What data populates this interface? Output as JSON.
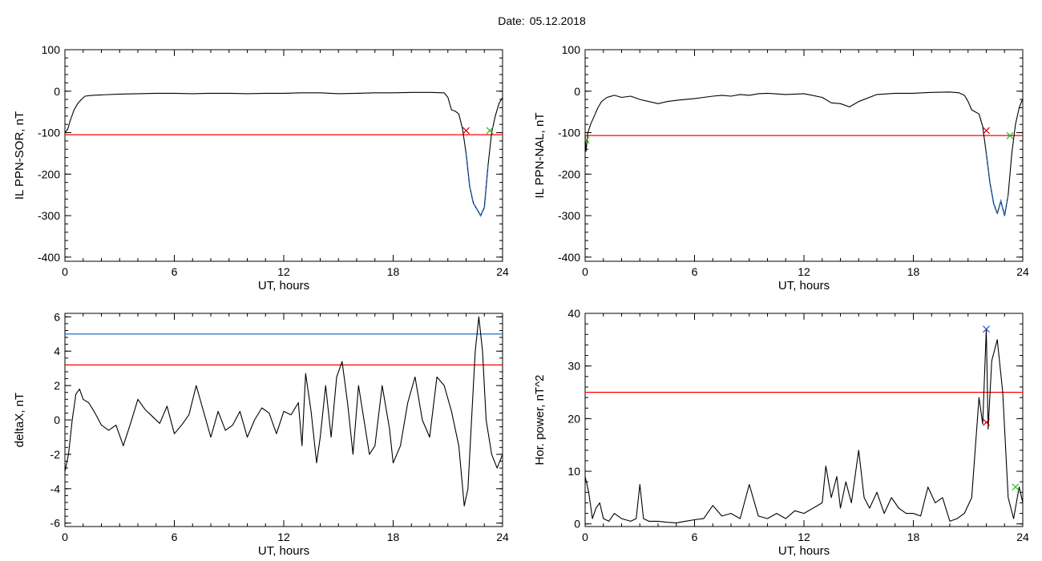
{
  "header": {
    "date_label": "Date:",
    "date_value": "05.12.2018"
  },
  "colors": {
    "threshold_red": "#ff0000",
    "threshold_blue": "#1f6fd6",
    "segment_blue": "#1f6fd6",
    "marker_red": "#cc0000",
    "marker_green": "#22bb22",
    "marker_blue": "#2255cc"
  },
  "chart_data": [
    {
      "type": "line",
      "title": "",
      "xlabel": "UT, hours",
      "ylabel": "IL PPN-SOR, nT",
      "xlim": [
        0,
        24
      ],
      "ylim": [
        -410,
        100
      ],
      "xticks": [
        0,
        6,
        12,
        18,
        24
      ],
      "yticks": [
        100,
        0,
        -100,
        -200,
        -300,
        -400
      ],
      "grid": false,
      "series": [
        {
          "x": [
            0,
            0.15,
            0.3,
            0.5,
            0.7,
            0.9,
            1.1,
            1.5,
            2,
            3,
            4,
            5,
            6,
            7,
            8,
            9,
            10,
            11,
            12,
            13,
            14,
            15,
            16,
            17,
            18,
            19,
            20,
            20.8,
            21.0,
            21.2,
            21.4,
            21.6,
            21.8,
            22.0,
            22.2,
            22.4,
            22.6,
            22.8,
            23.0,
            23.2,
            23.4,
            23.6,
            23.8,
            24
          ],
          "y": [
            -100,
            -92,
            -70,
            -45,
            -30,
            -20,
            -12,
            -10,
            -9,
            -7,
            -6,
            -5,
            -5,
            -6,
            -5,
            -5,
            -6,
            -5,
            -5,
            -4,
            -4,
            -6,
            -5,
            -4,
            -4,
            -3,
            -3,
            -4,
            -15,
            -45,
            -48,
            -55,
            -90,
            -150,
            -230,
            -270,
            -285,
            -300,
            -280,
            -180,
            -100,
            -60,
            -30,
            -15
          ]
        }
      ],
      "highlight_segment": {
        "x_start": 22.0,
        "x_end": 23.3
      },
      "threshold_lines": [
        {
          "y": -105,
          "color": "red"
        }
      ],
      "markers": [
        {
          "x": 22.0,
          "y": -95,
          "symbol": "x",
          "color": "red"
        },
        {
          "x": 23.3,
          "y": -95,
          "symbol": "x",
          "color": "green"
        }
      ]
    },
    {
      "type": "line",
      "title": "",
      "xlabel": "UT, hours",
      "ylabel": "IL PPN-NAL, nT",
      "xlim": [
        0,
        24
      ],
      "ylim": [
        -410,
        100
      ],
      "xticks": [
        0,
        6,
        12,
        18,
        24
      ],
      "yticks": [
        100,
        0,
        -100,
        -200,
        -300,
        -400
      ],
      "grid": false,
      "series": [
        {
          "x": [
            0,
            0.05,
            0.15,
            0.3,
            0.5,
            0.7,
            0.9,
            1.2,
            1.6,
            2,
            2.5,
            3,
            3.5,
            4,
            4.5,
            5,
            5.5,
            6,
            6.5,
            7,
            7.5,
            8,
            8.5,
            9,
            9.5,
            10,
            11,
            12,
            13,
            13.5,
            14,
            14.5,
            15,
            16,
            17,
            18,
            19,
            20,
            20.5,
            20.8,
            21.0,
            21.2,
            21.4,
            21.6,
            21.8,
            22.0,
            22.2,
            22.4,
            22.6,
            22.8,
            23.0,
            23.2,
            23.4,
            23.6,
            23.8,
            24
          ],
          "y": [
            -105,
            -145,
            -100,
            -80,
            -60,
            -40,
            -25,
            -15,
            -10,
            -15,
            -12,
            -20,
            -25,
            -30,
            -25,
            -22,
            -20,
            -18,
            -15,
            -12,
            -10,
            -12,
            -8,
            -10,
            -6,
            -5,
            -8,
            -6,
            -15,
            -28,
            -30,
            -38,
            -25,
            -8,
            -5,
            -5,
            -3,
            -2,
            -4,
            -10,
            -25,
            -45,
            -50,
            -55,
            -85,
            -150,
            -220,
            -270,
            -295,
            -265,
            -300,
            -250,
            -150,
            -80,
            -40,
            -18
          ]
        }
      ],
      "highlight_segment": {
        "x_start": 22.0,
        "x_end": 23.3
      },
      "threshold_lines": [
        {
          "y": -107,
          "color": "red"
        }
      ],
      "markers": [
        {
          "x": 0.05,
          "y": -118,
          "symbol": "x",
          "color": "green"
        },
        {
          "x": 22.0,
          "y": -95,
          "symbol": "x",
          "color": "red"
        },
        {
          "x": 23.3,
          "y": -107,
          "symbol": "x",
          "color": "green"
        }
      ]
    },
    {
      "type": "line",
      "title": "",
      "xlabel": "UT, hours",
      "ylabel": "deltaX, nT",
      "xlim": [
        0,
        24
      ],
      "ylim": [
        -6.2,
        6.2
      ],
      "xticks": [
        0,
        6,
        12,
        18,
        24
      ],
      "yticks": [
        6,
        4,
        2,
        0,
        -2,
        -4,
        -6
      ],
      "grid": false,
      "series": [
        {
          "x": [
            0,
            0.2,
            0.4,
            0.6,
            0.8,
            1.0,
            1.3,
            1.6,
            2.0,
            2.4,
            2.8,
            3.2,
            3.6,
            4.0,
            4.4,
            4.8,
            5.2,
            5.6,
            6.0,
            6.4,
            6.8,
            7.2,
            7.6,
            8.0,
            8.4,
            8.8,
            9.2,
            9.6,
            10.0,
            10.4,
            10.8,
            11.2,
            11.6,
            12.0,
            12.4,
            12.8,
            13.0,
            13.2,
            13.5,
            13.8,
            14.0,
            14.3,
            14.6,
            14.9,
            15.2,
            15.5,
            15.8,
            16.1,
            16.4,
            16.7,
            17.0,
            17.4,
            17.8,
            18.0,
            18.4,
            18.8,
            19.2,
            19.6,
            20.0,
            20.4,
            20.8,
            21.2,
            21.6,
            21.9,
            22.1,
            22.3,
            22.5,
            22.7,
            22.9,
            23.1,
            23.4,
            23.7,
            24
          ],
          "y": [
            -3,
            -2,
            0,
            1.5,
            1.8,
            1.2,
            1.0,
            0.5,
            -0.3,
            -0.6,
            -0.3,
            -1.5,
            -0.2,
            1.2,
            0.6,
            0.2,
            -0.2,
            0.8,
            -0.8,
            -0.3,
            0.3,
            2.0,
            0.5,
            -1.0,
            0.5,
            -0.6,
            -0.3,
            0.5,
            -1.0,
            0.0,
            0.7,
            0.4,
            -0.8,
            0.5,
            0.3,
            1.0,
            -1.5,
            2.7,
            0.5,
            -2.5,
            -1.0,
            2.0,
            -1.0,
            2.5,
            3.4,
            1.0,
            -2.0,
            2.0,
            0.0,
            -2.0,
            -1.5,
            2.0,
            -0.5,
            -2.5,
            -1.5,
            1.0,
            2.5,
            0.0,
            -1.0,
            2.5,
            2.0,
            0.5,
            -1.5,
            -5.0,
            -4.0,
            0.0,
            4.0,
            6.0,
            4.0,
            0.0,
            -2.0,
            -2.8,
            -2.0
          ]
        }
      ],
      "threshold_lines": [
        {
          "y": 5.0,
          "color": "blue"
        },
        {
          "y": 3.2,
          "color": "red"
        }
      ],
      "markers": []
    },
    {
      "type": "line",
      "title": "",
      "xlabel": "UT, hours",
      "ylabel": "Hor. power, nT^2",
      "xlim": [
        0,
        24
      ],
      "ylim": [
        -0.5,
        40
      ],
      "xticks": [
        0,
        6,
        12,
        18,
        24
      ],
      "yticks": [
        40,
        30,
        20,
        10,
        0
      ],
      "grid": false,
      "series": [
        {
          "x": [
            0,
            0.2,
            0.4,
            0.6,
            0.8,
            1.0,
            1.3,
            1.6,
            2.0,
            2.5,
            2.8,
            3.0,
            3.2,
            3.5,
            4.0,
            4.5,
            5.0,
            5.5,
            6.0,
            6.5,
            7.0,
            7.5,
            8.0,
            8.5,
            9.0,
            9.5,
            10.0,
            10.5,
            11.0,
            11.5,
            12.0,
            12.5,
            13.0,
            13.2,
            13.5,
            13.8,
            14.0,
            14.3,
            14.6,
            15.0,
            15.3,
            15.6,
            16.0,
            16.4,
            16.8,
            17.2,
            17.6,
            18.0,
            18.4,
            18.8,
            19.2,
            19.6,
            20.0,
            20.4,
            20.8,
            21.2,
            21.6,
            21.8,
            22.0,
            22.1,
            22.3,
            22.6,
            22.9,
            23.2,
            23.5,
            23.8,
            24
          ],
          "y": [
            9,
            6,
            1,
            3,
            4,
            1,
            0.5,
            2,
            1,
            0.5,
            1,
            7.5,
            1,
            0.5,
            0.5,
            0.3,
            0.2,
            0.5,
            0.8,
            1.0,
            3.5,
            1.5,
            2.0,
            1.0,
            7.5,
            1.5,
            1.0,
            2.0,
            1.0,
            2.5,
            2.0,
            3.0,
            4.0,
            11,
            5,
            9,
            3,
            8,
            4,
            14,
            5,
            3,
            6,
            2,
            5,
            3,
            2,
            2,
            1.5,
            7,
            4,
            5,
            0.5,
            1,
            2,
            5,
            24,
            19,
            37,
            18,
            31,
            35,
            25,
            5,
            1,
            7,
            4
          ]
        }
      ],
      "threshold_lines": [
        {
          "y": 25,
          "color": "red"
        }
      ],
      "markers": [
        {
          "x": 22.0,
          "y": 37,
          "symbol": "x",
          "color": "blue"
        },
        {
          "x": 22.0,
          "y": 19.3,
          "symbol": "x",
          "color": "red"
        },
        {
          "x": 23.6,
          "y": 7,
          "symbol": "x",
          "color": "green"
        }
      ]
    }
  ]
}
